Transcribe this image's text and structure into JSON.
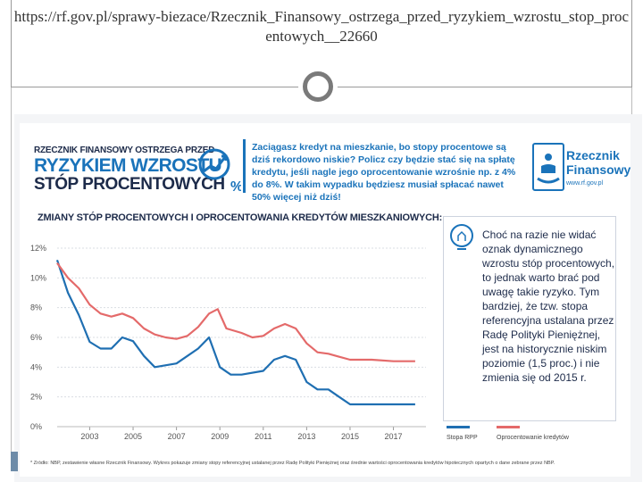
{
  "slide": {
    "url": "https://rf.gov.pl/sprawy-biezace/Rzecznik_Finansowy_ostrzega_przed_ryzykiem_wzrostu_stop_procentowych__22660"
  },
  "header": {
    "line1": "RZECZNIK FINANSOWY OSTRZEGA PRZED",
    "line2": "RYZYKIEM WZROSTU",
    "line3": "STÓP PROCENTOWYCH",
    "intro": "Zaciągasz kredyt na mieszkanie, bo stopy procentowe są dziś rekordowo niskie? Policz czy będzie stać się na spłatę kredytu, jeśli nagle jego oprocentowanie wzrośnie np. z 4% do 8%. W takim wypadku będziesz musiał spłacać nawet 50% więcej niż dziś!"
  },
  "logo": {
    "name_line1": "Rzecznik",
    "name_line2": "Finansowy",
    "url": "www.rf.gov.pl"
  },
  "tip": {
    "text": "Choć na razie nie widać oznak dynamicznego wzrostu stóp procentowych, to jednak warto brać pod uwagę takie ryzyko. Tym bardziej, że tzw. stopa referencyjna ustalana przez Radę Polityki Pieniężnej, jest na historycznie niskim poziomie (1,5 proc.) i nie zmienia się od 2015 r."
  },
  "footnote": "* Źródło: NBP, zestawienie własne Rzecznik Finansowy. Wykres pokazuje zmiany stopy referencyjnej ustalanej przez Radę Polityki Pieniężnej oraz średnie wartości oprocentowania kredytów hipotecznych opartych o dane zebrane przez NBP.",
  "chart_data": {
    "type": "line",
    "title": "ZMIANY STÓP PROCENTOWYCH I OPROCENTOWANIA KREDYTÓW MIESZKANIOWYCH:",
    "ylim": [
      0,
      12
    ],
    "xlim": [
      2001.5,
      2018.5
    ],
    "y_ticks": [
      0,
      2,
      4,
      6,
      8,
      10,
      12
    ],
    "y_tick_labels": [
      "0%",
      "2%",
      "4%",
      "6%",
      "8%",
      "10%",
      "12%"
    ],
    "x_ticks": [
      2003,
      2005,
      2007,
      2009,
      2011,
      2013,
      2015,
      2017
    ],
    "x_tick_labels": [
      "2003",
      "2005",
      "2007",
      "2009",
      "2011",
      "2013",
      "2015",
      "2017"
    ],
    "grid": true,
    "series": [
      {
        "name": "Stopa RPP",
        "color": "#1f6fb2",
        "x": [
          2001.5,
          2002.0,
          2002.5,
          2003.0,
          2003.5,
          2004.0,
          2004.5,
          2005.0,
          2005.5,
          2006.0,
          2007.0,
          2007.5,
          2008.0,
          2008.5,
          2009.0,
          2009.5,
          2010.0,
          2011.0,
          2011.5,
          2012.0,
          2012.5,
          2013.0,
          2013.5,
          2014.0,
          2014.5,
          2015.0,
          2016.0,
          2017.0,
          2018.0
        ],
        "values": [
          11.2,
          9.0,
          7.5,
          5.7,
          5.25,
          5.25,
          6.0,
          5.75,
          4.75,
          4.0,
          4.25,
          4.75,
          5.25,
          6.0,
          4.0,
          3.5,
          3.5,
          3.75,
          4.5,
          4.75,
          4.5,
          3.0,
          2.5,
          2.5,
          2.0,
          1.5,
          1.5,
          1.5,
          1.5
        ]
      },
      {
        "name": "Oprocentowanie kredytów",
        "color": "#e46a6a",
        "x": [
          2001.5,
          2002.0,
          2002.5,
          2003.0,
          2003.5,
          2004.0,
          2004.5,
          2005.0,
          2005.5,
          2006.0,
          2006.5,
          2007.0,
          2007.5,
          2008.0,
          2008.5,
          2008.9,
          2009.3,
          2010.0,
          2010.5,
          2011.0,
          2011.5,
          2012.0,
          2012.5,
          2013.0,
          2013.5,
          2014.0,
          2014.5,
          2015.0,
          2016.0,
          2017.0,
          2018.0
        ],
        "values": [
          11.0,
          10.0,
          9.3,
          8.2,
          7.6,
          7.4,
          7.6,
          7.3,
          6.6,
          6.2,
          6.0,
          5.9,
          6.1,
          6.7,
          7.6,
          7.9,
          6.6,
          6.3,
          6.0,
          6.1,
          6.6,
          6.9,
          6.6,
          5.6,
          5.0,
          4.9,
          4.7,
          4.5,
          4.5,
          4.4,
          4.4
        ]
      }
    ]
  }
}
